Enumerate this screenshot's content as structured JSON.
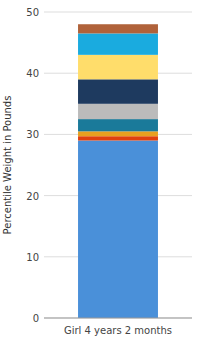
{
  "chart_data": {
    "type": "bar",
    "stacked": true,
    "categories": [
      "Girl 4 years 2 months"
    ],
    "series": [
      {
        "color": "#4A90D9",
        "values": [
          29.0
        ]
      },
      {
        "color": "#E04010",
        "values": [
          0.7
        ]
      },
      {
        "color": "#E8A020",
        "values": [
          0.8
        ]
      },
      {
        "color": "#1A7A9A",
        "values": [
          2.0
        ]
      },
      {
        "color": "#BBBBBB",
        "values": [
          2.5
        ]
      },
      {
        "color": "#1E3A5F",
        "values": [
          4.0
        ]
      },
      {
        "color": "#FFDD6B",
        "values": [
          4.0
        ]
      },
      {
        "color": "#1AABDF",
        "values": [
          3.5
        ]
      },
      {
        "color": "#B0623A",
        "values": [
          1.5
        ]
      }
    ],
    "y_label": "Percentile Weight in Pounds",
    "ylim": [
      0,
      50
    ],
    "yticks": [
      0,
      10,
      20,
      30,
      40,
      50
    ],
    "grid": true
  }
}
